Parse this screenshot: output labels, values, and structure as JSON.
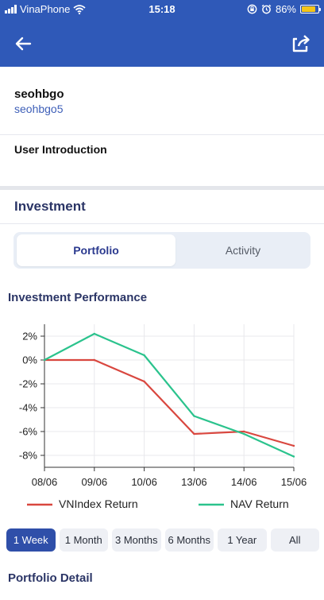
{
  "status_bar": {
    "carrier": "VinaPhone",
    "time": "15:18",
    "battery": "86%",
    "battery_level": 0.86,
    "icons": [
      "signal-icon",
      "wifi-icon",
      "rotation-lock-icon",
      "alarm-icon",
      "battery-icon"
    ]
  },
  "app_bar": {
    "icons": [
      "back-arrow-icon",
      "share-icon"
    ]
  },
  "profile": {
    "name": "seohbgo",
    "handle": "seohbgo5"
  },
  "intro": {
    "label": "User Introduction"
  },
  "investment": {
    "title": "Investment",
    "tabs": [
      {
        "label": "Portfolio",
        "active": true
      },
      {
        "label": "Activity",
        "active": false
      }
    ]
  },
  "performance": {
    "title": "Investment Performance"
  },
  "chart_data": {
    "type": "line",
    "categories": [
      "08/06",
      "09/06",
      "10/06",
      "13/06",
      "14/06",
      "15/06"
    ],
    "series": [
      {
        "name": "VNIndex Return",
        "values": [
          0.0,
          0.0,
          -1.8,
          -6.2,
          -6.0,
          -7.2
        ],
        "color": "#d9473f"
      },
      {
        "name": "NAV Return",
        "values": [
          0.0,
          2.2,
          0.4,
          -4.7,
          -6.2,
          -8.1
        ],
        "color": "#2bc38d"
      }
    ],
    "yticks": [
      "2%",
      "0%",
      "-2%",
      "-4%",
      "-6%",
      "-8%"
    ],
    "ylim": [
      -9,
      3
    ],
    "grid": true,
    "legend": "bottom"
  },
  "ranges": [
    {
      "label": "1 Week",
      "active": true
    },
    {
      "label": "1 Month",
      "active": false
    },
    {
      "label": "3 Months",
      "active": false
    },
    {
      "label": "6 Months",
      "active": false
    },
    {
      "label": "1 Year",
      "active": false
    },
    {
      "label": "All",
      "active": false
    }
  ],
  "portfolio_detail": {
    "title": "Portfolio Detail"
  },
  "colors": {
    "primary": "#2f59b8",
    "active_range": "#2f4fa9",
    "heading": "#2b3566",
    "link": "#3e5fb8"
  }
}
